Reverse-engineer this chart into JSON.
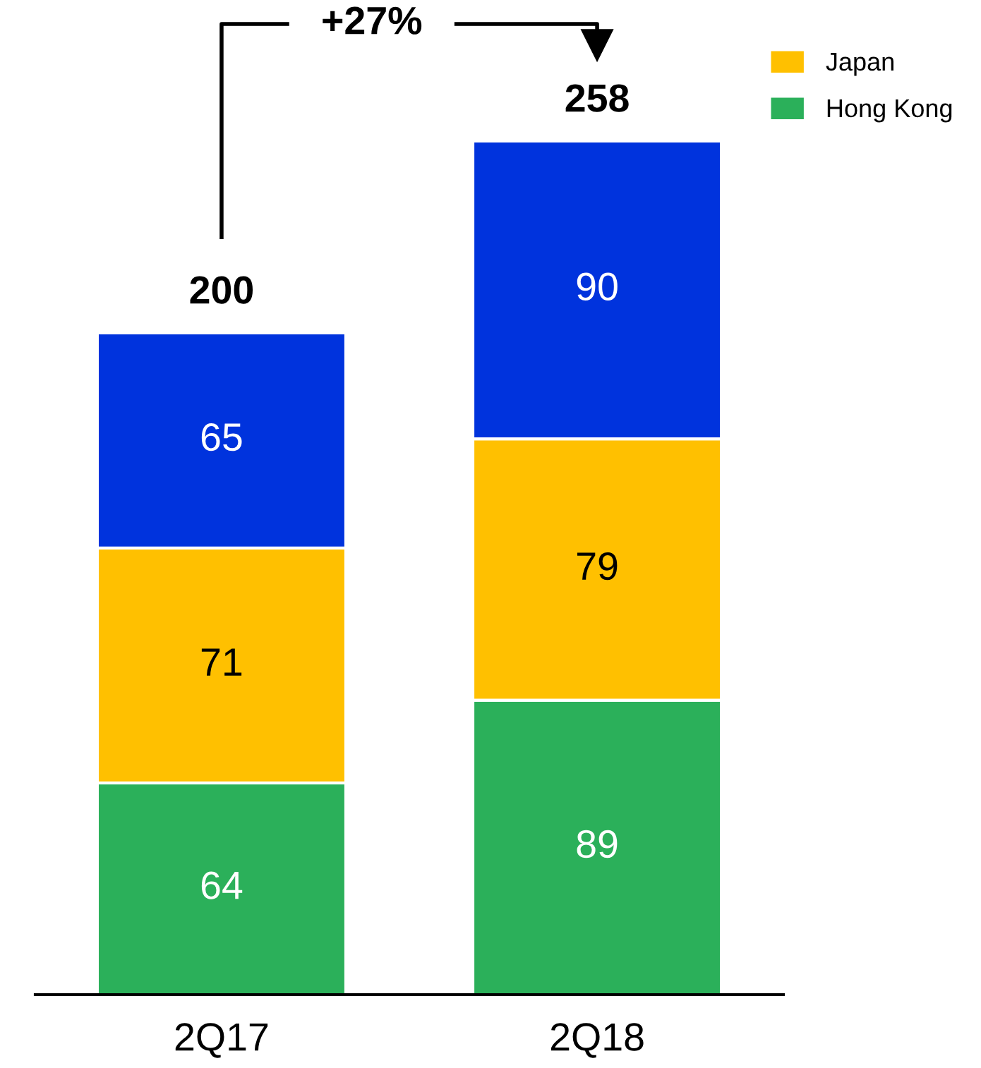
{
  "chart_data": {
    "type": "bar",
    "stacked": true,
    "categories": [
      "2Q17",
      "2Q18"
    ],
    "series": [
      {
        "name": "Hong Kong",
        "color": "#2bb05a",
        "values": [
          64,
          89
        ]
      },
      {
        "name": "Japan",
        "color": "#ffc000",
        "values": [
          71,
          79
        ]
      },
      {
        "color": "#0033dd",
        "values": [
          65,
          90
        ]
      }
    ],
    "data_labels": true,
    "totals": [
      "200",
      "258"
    ],
    "annotations": [
      "+27%"
    ],
    "legend": "top right",
    "grid": false
  }
}
